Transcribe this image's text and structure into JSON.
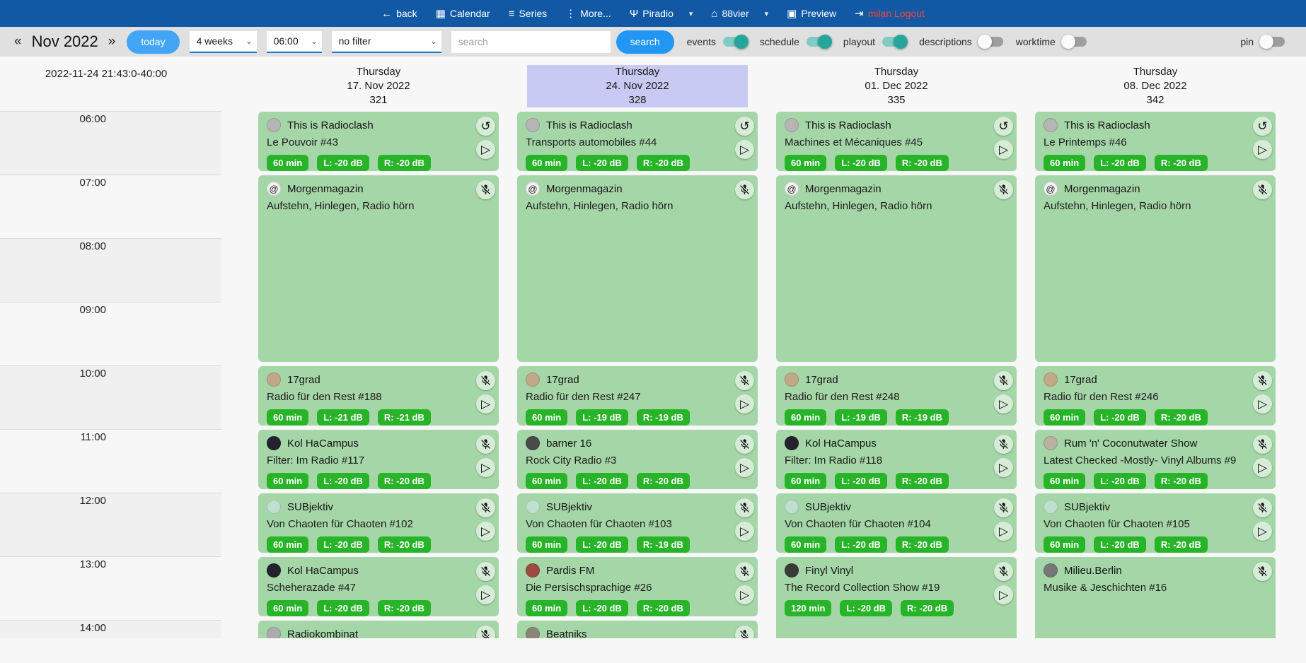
{
  "colors": {
    "navbar_bg": "#1159a5",
    "toolbar_bg": "#e0e0e0",
    "accent_blue": "#2196f3",
    "today_blue": "#42a5f5",
    "card_green": "#a5d6a7",
    "badge_green": "#28b428",
    "toggle_on_teal": "#26a69a",
    "selected_day_lavender": "#c9caf3",
    "logout_red": "#f44336"
  },
  "navbar": {
    "items": [
      {
        "id": "back",
        "icon_name": "back-arrow-icon",
        "icon_glyph": "←",
        "label": "back"
      },
      {
        "id": "calendar",
        "icon_name": "calendar-icon",
        "icon_glyph": "▦",
        "label": "Calendar"
      },
      {
        "id": "series",
        "icon_name": "series-list-icon",
        "icon_glyph": "≡",
        "label": "Series"
      },
      {
        "id": "more",
        "icon_name": "more-dots-icon",
        "icon_glyph": "⋮",
        "label": "More..."
      },
      {
        "id": "piradio",
        "icon_name": "antenna-icon",
        "icon_glyph": "Ψ",
        "label": "Piradio",
        "dropdown": true
      },
      {
        "id": "88vier",
        "icon_name": "home-icon",
        "icon_glyph": "⌂",
        "label": "88vier",
        "dropdown": true
      },
      {
        "id": "preview",
        "icon_name": "preview-icon",
        "icon_glyph": "▣",
        "label": "Preview"
      },
      {
        "id": "logout",
        "icon_name": "logout-icon",
        "icon_glyph": "⇥",
        "label": "milan Logout",
        "label_color": "#f44336"
      }
    ]
  },
  "toolbar": {
    "prev": "«",
    "month_label": "Nov 2022",
    "next": "»",
    "today_label": "today",
    "selects": [
      {
        "value": "4 weeks"
      },
      {
        "value": "06:00"
      },
      {
        "value": "no filter"
      }
    ],
    "search_placeholder": "search",
    "search_button": "search",
    "toggles": [
      {
        "label": "events",
        "on": true
      },
      {
        "label": "schedule",
        "on": true
      },
      {
        "label": "playout",
        "on": true
      },
      {
        "label": "descriptions",
        "on": false
      },
      {
        "label": "worktime",
        "on": false
      }
    ],
    "pin_toggle": {
      "label": "pin",
      "on": false
    }
  },
  "grid": {
    "timestamp": "2022-11-24 21:43:0-40:00",
    "hours": [
      "06:00",
      "07:00",
      "08:00",
      "09:00",
      "10:00",
      "11:00",
      "12:00",
      "13:00",
      "14:00"
    ],
    "days": [
      {
        "weekday": "Thursday",
        "date": "17. Nov 2022",
        "day_number": "321",
        "selected": false,
        "events": [
          {
            "show": "This is Radioclash",
            "episode": "Le Pouvoir #43",
            "start": 6,
            "hours": 1,
            "badges": [
              "60 min",
              "L: -20 dB",
              "R: -20 dB"
            ],
            "buttons": [
              "replay",
              "play"
            ],
            "avatar": {
              "bg": "#b5b5b5",
              "glyph": ""
            }
          },
          {
            "show": "Morgenmagazin",
            "episode": "Aufstehn, Hinlegen, Radio hörn",
            "start": 7,
            "hours": 3,
            "badges": [],
            "buttons": [
              "mic-off"
            ],
            "avatar": {
              "bg": "#f2f2f2",
              "glyph": "@"
            }
          },
          {
            "show": "17grad",
            "episode": "Radio für den Rest #188",
            "start": 10,
            "hours": 1,
            "badges": [
              "60 min",
              "L: -21 dB",
              "R: -21 dB"
            ],
            "buttons": [
              "mic-off",
              "play"
            ],
            "avatar": {
              "bg": "#c0a888",
              "glyph": ""
            }
          },
          {
            "show": "Kol HaCampus",
            "episode": "Filter: Im Radio #117",
            "start": 11,
            "hours": 1,
            "badges": [
              "60 min",
              "L: -20 dB",
              "R: -20 dB"
            ],
            "buttons": [
              "mic-off",
              "play"
            ],
            "avatar": {
              "bg": "#23222d",
              "glyph": ""
            }
          },
          {
            "show": "SUBjektiv",
            "episode": "Von Chaoten für Chaoten #102",
            "start": 12,
            "hours": 1,
            "badges": [
              "60 min",
              "L: -20 dB",
              "R: -20 dB"
            ],
            "buttons": [
              "mic-off",
              "play"
            ],
            "avatar": {
              "bg": "#bfe0cf",
              "glyph": ""
            }
          },
          {
            "show": "Kol HaCampus",
            "episode": "Scheherazade #47",
            "start": 13,
            "hours": 1,
            "badges": [
              "60 min",
              "L: -20 dB",
              "R: -20 dB"
            ],
            "buttons": [
              "mic-off",
              "play"
            ],
            "avatar": {
              "bg": "#23222d",
              "glyph": ""
            }
          },
          {
            "show": "Radiokombinat",
            "episode": "",
            "start": 14,
            "hours": 1,
            "badges": [],
            "buttons": [
              "mic-off"
            ],
            "avatar": {
              "bg": "#ababab",
              "glyph": ""
            }
          }
        ]
      },
      {
        "weekday": "Thursday",
        "date": "24. Nov 2022",
        "day_number": "328",
        "selected": true,
        "events": [
          {
            "show": "This is Radioclash",
            "episode": "Transports automobiles #44",
            "start": 6,
            "hours": 1,
            "badges": [
              "60 min",
              "L: -20 dB",
              "R: -20 dB"
            ],
            "buttons": [
              "replay",
              "play"
            ],
            "avatar": {
              "bg": "#b5b5b5",
              "glyph": ""
            }
          },
          {
            "show": "Morgenmagazin",
            "episode": "Aufstehn, Hinlegen, Radio hörn",
            "start": 7,
            "hours": 3,
            "badges": [],
            "buttons": [
              "mic-off"
            ],
            "avatar": {
              "bg": "#f2f2f2",
              "glyph": "@"
            }
          },
          {
            "show": "17grad",
            "episode": "Radio für den Rest #247",
            "start": 10,
            "hours": 1,
            "badges": [
              "60 min",
              "L: -19 dB",
              "R: -19 dB"
            ],
            "buttons": [
              "mic-off",
              "play"
            ],
            "avatar": {
              "bg": "#c0a888",
              "glyph": ""
            }
          },
          {
            "show": "barner 16",
            "episode": "Rock City Radio #3",
            "start": 11,
            "hours": 1,
            "badges": [
              "60 min",
              "L: -20 dB",
              "R: -20 dB"
            ],
            "buttons": [
              "mic-off",
              "play"
            ],
            "avatar": {
              "bg": "#4a4a4a",
              "glyph": ""
            }
          },
          {
            "show": "SUBjektiv",
            "episode": "Von Chaoten für Chaoten #103",
            "start": 12,
            "hours": 1,
            "badges": [
              "60 min",
              "L: -20 dB",
              "R: -19 dB"
            ],
            "buttons": [
              "mic-off",
              "play"
            ],
            "avatar": {
              "bg": "#bfe0cf",
              "glyph": ""
            }
          },
          {
            "show": "Pardis FM",
            "episode": "Die Persischsprachige #26",
            "start": 13,
            "hours": 1,
            "badges": [
              "60 min",
              "L: -20 dB",
              "R: -20 dB"
            ],
            "buttons": [
              "mic-off",
              "play"
            ],
            "avatar": {
              "bg": "#9c4a42",
              "glyph": ""
            }
          },
          {
            "show": "Beatniks",
            "episode": "",
            "start": 14,
            "hours": 1,
            "badges": [],
            "buttons": [
              "mic-off"
            ],
            "avatar": {
              "bg": "#8a8578",
              "glyph": ""
            }
          }
        ]
      },
      {
        "weekday": "Thursday",
        "date": "01. Dec 2022",
        "day_number": "335",
        "selected": false,
        "events": [
          {
            "show": "This is Radioclash",
            "episode": "Machines et Mécaniques #45",
            "start": 6,
            "hours": 1,
            "badges": [
              "60 min",
              "L: -20 dB",
              "R: -20 dB"
            ],
            "buttons": [
              "replay",
              "play"
            ],
            "avatar": {
              "bg": "#b5b5b5",
              "glyph": ""
            }
          },
          {
            "show": "Morgenmagazin",
            "episode": "Aufstehn, Hinlegen, Radio hörn",
            "start": 7,
            "hours": 3,
            "badges": [],
            "buttons": [
              "mic-off"
            ],
            "avatar": {
              "bg": "#f2f2f2",
              "glyph": "@"
            }
          },
          {
            "show": "17grad",
            "episode": "Radio für den Rest #248",
            "start": 10,
            "hours": 1,
            "badges": [
              "60 min",
              "L: -19 dB",
              "R: -19 dB"
            ],
            "buttons": [
              "mic-off",
              "play"
            ],
            "avatar": {
              "bg": "#c0a888",
              "glyph": ""
            }
          },
          {
            "show": "Kol HaCampus",
            "episode": "Filter: Im Radio #118",
            "start": 11,
            "hours": 1,
            "badges": [
              "60 min",
              "L: -20 dB",
              "R: -20 dB"
            ],
            "buttons": [
              "mic-off",
              "play"
            ],
            "avatar": {
              "bg": "#23222d",
              "glyph": ""
            }
          },
          {
            "show": "SUBjektiv",
            "episode": "Von Chaoten für Chaoten #104",
            "start": 12,
            "hours": 1,
            "badges": [
              "60 min",
              "L: -20 dB",
              "R: -20 dB"
            ],
            "buttons": [
              "mic-off",
              "play"
            ],
            "avatar": {
              "bg": "#bfe0cf",
              "glyph": ""
            }
          },
          {
            "show": "Finyl Vinyl",
            "episode": "The Record Collection Show #19",
            "start": 13,
            "hours": 2,
            "badges": [
              "120 min",
              "L: -20 dB",
              "R: -20 dB"
            ],
            "buttons": [
              "mic-off",
              "play"
            ],
            "avatar": {
              "bg": "#3a3a3a",
              "glyph": ""
            }
          }
        ]
      },
      {
        "weekday": "Thursday",
        "date": "08. Dec 2022",
        "day_number": "342",
        "selected": false,
        "events": [
          {
            "show": "This is Radioclash",
            "episode": "Le Printemps #46",
            "start": 6,
            "hours": 1,
            "badges": [
              "60 min",
              "L: -20 dB",
              "R: -20 dB"
            ],
            "buttons": [
              "replay",
              "play"
            ],
            "avatar": {
              "bg": "#b5b5b5",
              "glyph": ""
            }
          },
          {
            "show": "Morgenmagazin",
            "episode": "Aufstehn, Hinlegen, Radio hörn",
            "start": 7,
            "hours": 3,
            "badges": [],
            "buttons": [
              "mic-off"
            ],
            "avatar": {
              "bg": "#f2f2f2",
              "glyph": "@"
            }
          },
          {
            "show": "17grad",
            "episode": "Radio für den Rest #246",
            "start": 10,
            "hours": 1,
            "badges": [
              "60 min",
              "L: -20 dB",
              "R: -20 dB"
            ],
            "buttons": [
              "mic-off",
              "play"
            ],
            "avatar": {
              "bg": "#c0a888",
              "glyph": ""
            }
          },
          {
            "show": "Rum 'n' Coconutwater Show",
            "episode": "Latest Checked -Mostly- Vinyl Albums #9",
            "start": 11,
            "hours": 1,
            "badges": [
              "60 min",
              "L: -20 dB",
              "R: -20 dB"
            ],
            "buttons": [
              "mic-off",
              "play"
            ],
            "avatar": {
              "bg": "#b8b0a0",
              "glyph": ""
            }
          },
          {
            "show": "SUBjektiv",
            "episode": "Von Chaoten für Chaoten #105",
            "start": 12,
            "hours": 1,
            "badges": [
              "60 min",
              "L: -20 dB",
              "R: -20 dB"
            ],
            "buttons": [
              "mic-off",
              "play"
            ],
            "avatar": {
              "bg": "#bfe0cf",
              "glyph": ""
            }
          },
          {
            "show": "Milieu.Berlin",
            "episode": "Musike & Jeschichten #16",
            "start": 13,
            "hours": 2,
            "badges": [],
            "buttons": [
              "mic-off"
            ],
            "avatar": {
              "bg": "#777777",
              "glyph": ""
            }
          }
        ]
      }
    ]
  }
}
